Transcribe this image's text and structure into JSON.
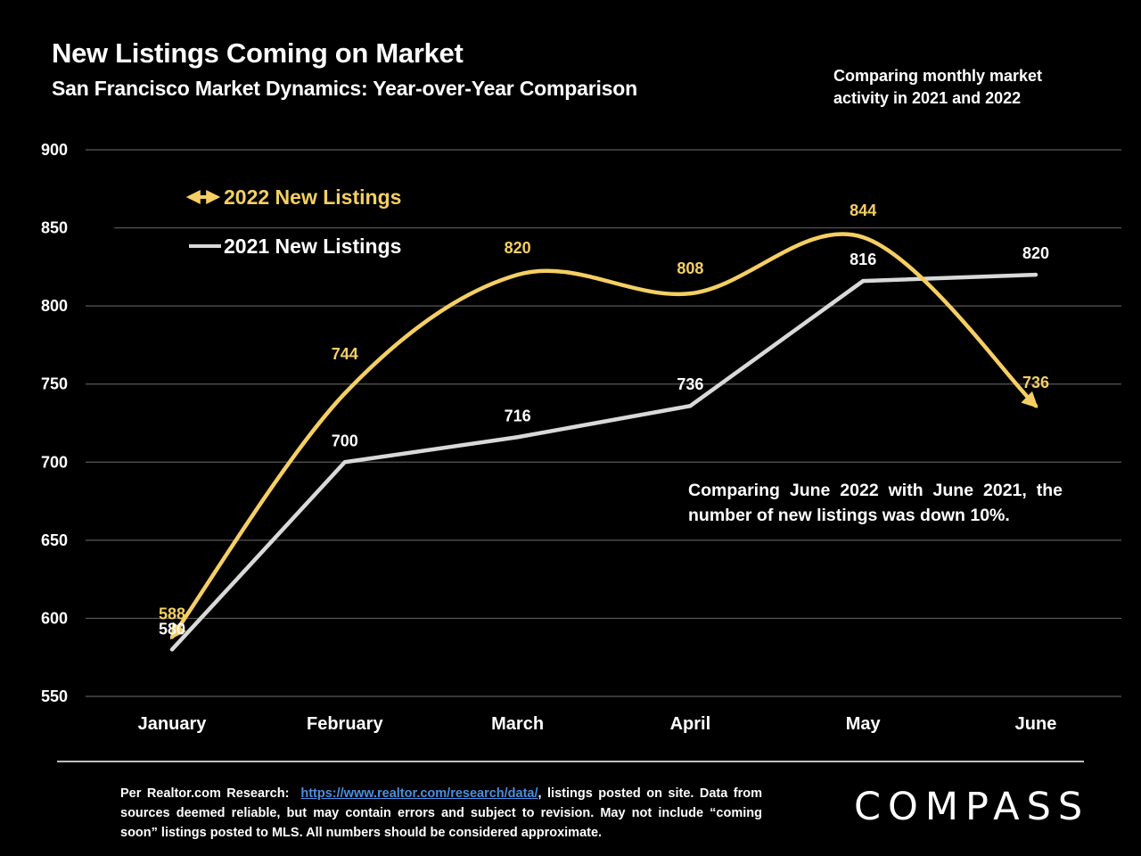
{
  "header": {
    "title": "New Listings Coming on Market",
    "subtitle": "San Francisco Market Dynamics: Year-over-Year Comparison",
    "corner_note": "Comparing monthly market activity in 2021 and 2022"
  },
  "annotation": "Comparing June 2022 with June 2021, the number of new listings was down 10%.",
  "footer": {
    "source_prefix": "Per Realtor.com Research:",
    "source_link": "https://www.realtor.com/research/data/",
    "source_rest": ", listings posted on site. Data from sources deemed reliable, but may contain errors and subject to revision. May not include “coming soon” listings posted to MLS. All numbers should be considered approximate.",
    "logo": "COMPASS"
  },
  "colors": {
    "series_2022": "#f5cf63",
    "series_2021": "#d9d9d9",
    "grid": "#595959",
    "background": "#000000"
  },
  "chart_data": {
    "type": "line",
    "title": "New Listings Coming on Market",
    "categories": [
      "January",
      "February",
      "March",
      "April",
      "May",
      "June"
    ],
    "series": [
      {
        "name": "2022 New Listings",
        "values": [
          588,
          744,
          820,
          808,
          844,
          736
        ],
        "labels": [
          "588",
          "744",
          "820",
          "808",
          "844",
          "736"
        ],
        "color": "#f5cf63",
        "smooth": true,
        "marker": "arrow"
      },
      {
        "name": "2021 New Listings",
        "values": [
          580,
          700,
          716,
          736,
          816,
          820
        ],
        "labels": [
          "580",
          "700",
          "716",
          "736",
          "816",
          "820"
        ],
        "color": "#d9d9d9",
        "smooth": false
      }
    ],
    "yticks": [
      "550",
      "600",
      "650",
      "700",
      "750",
      "800",
      "850",
      "900"
    ],
    "ylim": [
      550,
      900
    ],
    "xlabel": "",
    "ylabel": "",
    "grid": true,
    "legend_position": "top-left"
  }
}
